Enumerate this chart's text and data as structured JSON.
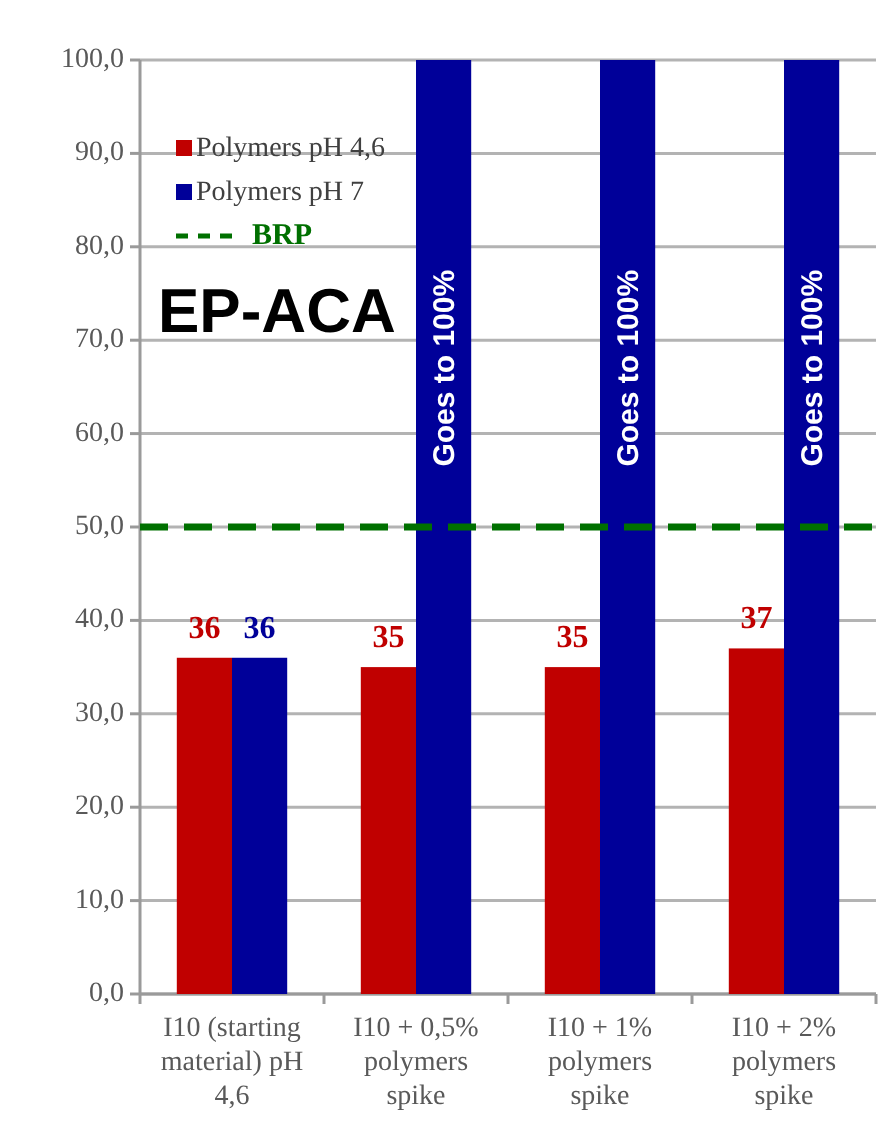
{
  "chart_data": {
    "type": "bar",
    "title": "EP-ACA",
    "categories": [
      "I10 (starting material) pH 4,6",
      "I10 + 0,5% polymers spike",
      "I10 + 1% polymers spike",
      "I10 + 2% polymers spike"
    ],
    "series": [
      {
        "name": "Polymers pH 4,6",
        "color": "#c00000",
        "values": [
          36,
          35,
          35,
          37
        ],
        "value_labels": [
          "36",
          "35",
          "35",
          "37"
        ]
      },
      {
        "name": "Polymers pH 7",
        "color": "#000099",
        "values": [
          36,
          100,
          100,
          100
        ],
        "value_labels": [
          "36",
          "Goes to 100%",
          "Goes to 100%",
          "Goes to 100%"
        ]
      }
    ],
    "ylim": [
      0,
      100
    ],
    "yticks": [
      {
        "value": 0,
        "label": "0,0"
      },
      {
        "value": 10,
        "label": "10,0"
      },
      {
        "value": 20,
        "label": "20,0"
      },
      {
        "value": 30,
        "label": "30,0"
      },
      {
        "value": 40,
        "label": "40,0"
      },
      {
        "value": 50,
        "label": "50,0"
      },
      {
        "value": 60,
        "label": "60,0"
      },
      {
        "value": 70,
        "label": "70,0"
      },
      {
        "value": 80,
        "label": "80,0"
      },
      {
        "value": 90,
        "label": "90,0"
      },
      {
        "value": 100,
        "label": "100,0"
      }
    ],
    "ref_lines": [
      {
        "axis": "y",
        "value": 50,
        "label": "BRP",
        "color": "#007000",
        "line_style": "dashed"
      }
    ],
    "grid": "y",
    "legend": "top left"
  }
}
